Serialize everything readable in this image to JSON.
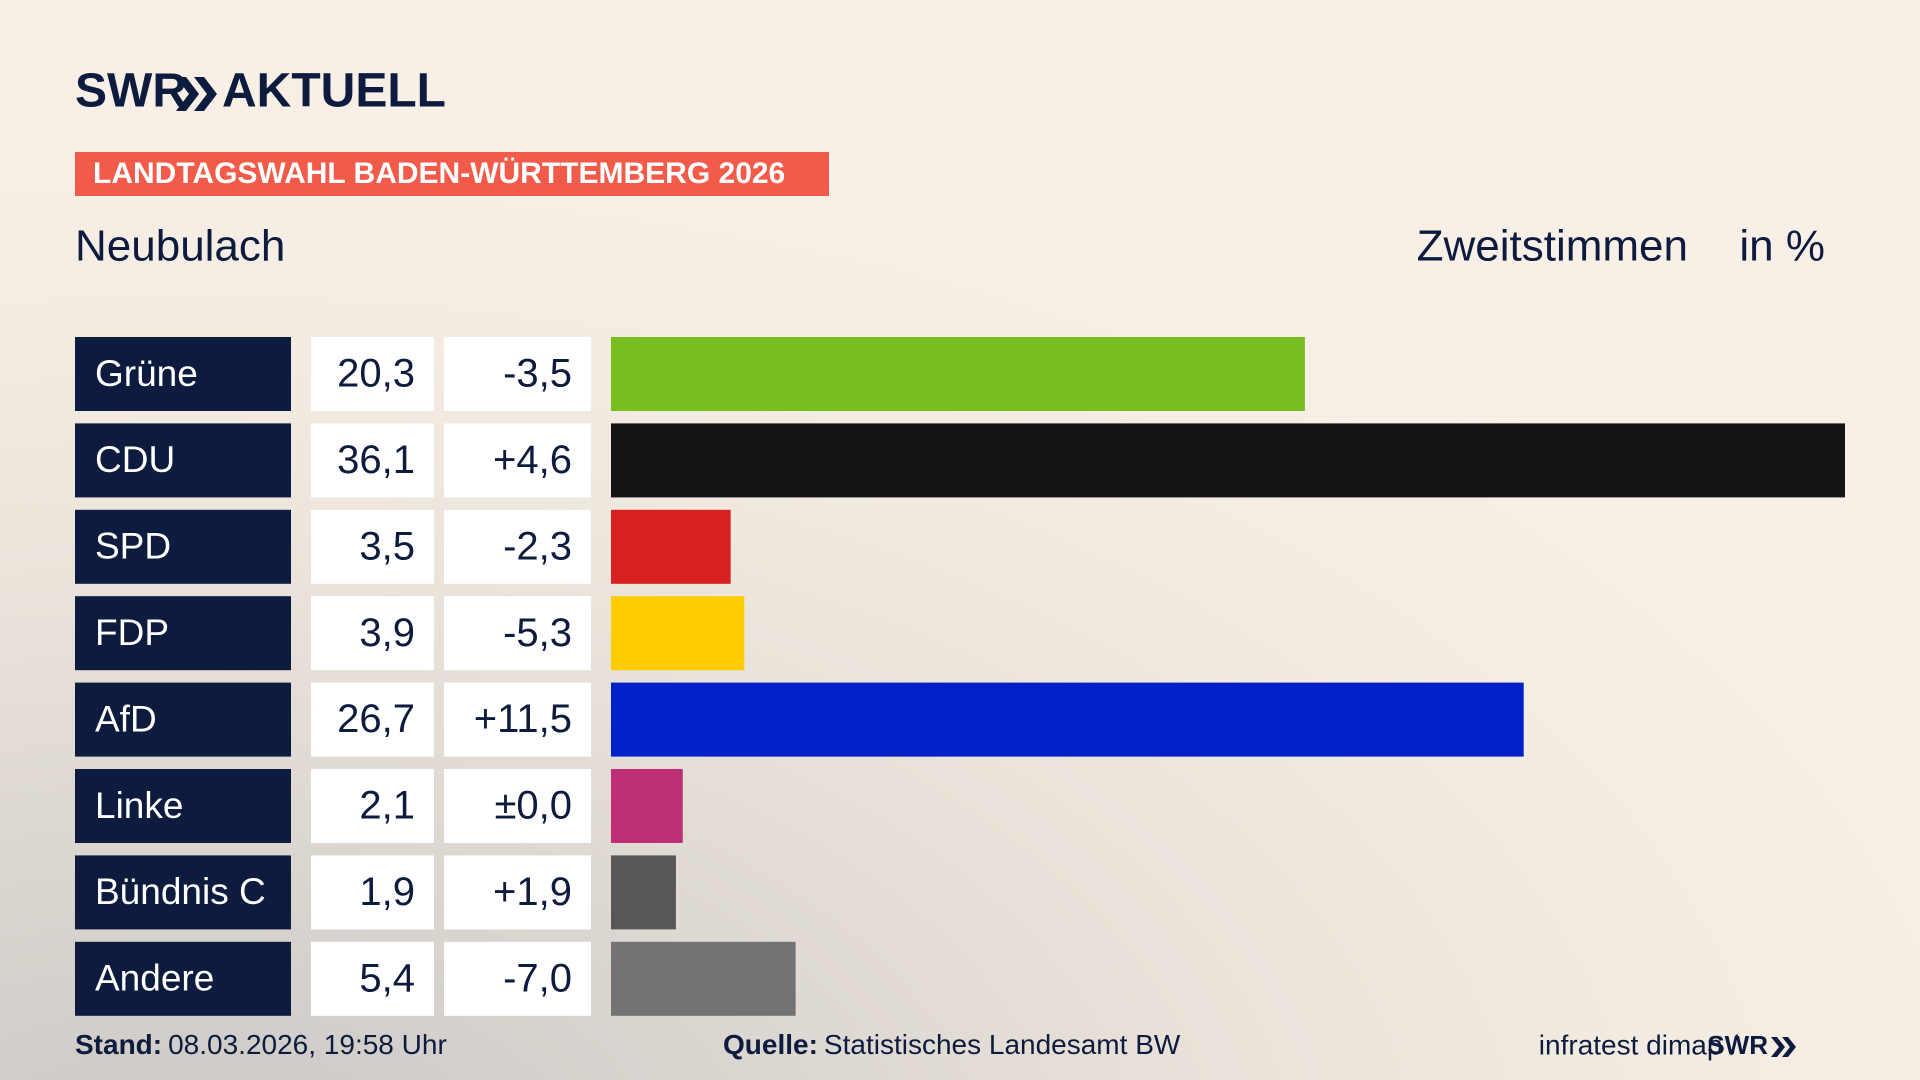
{
  "brand": "SWR",
  "brand_product": "AKTUELL",
  "chart_data": {
    "type": "bar",
    "title": "LANDTAGSWAHL BADEN-WÜRTTEMBERG 2026",
    "subtitle": "Neubulach",
    "measure": "Zweitstimmen",
    "unit": "in %",
    "categories": [
      "Grüne",
      "CDU",
      "SPD",
      "FDP",
      "AfD",
      "Linke",
      "Bündnis C",
      "Andere"
    ],
    "values": [
      20.3,
      36.1,
      3.5,
      3.9,
      26.7,
      2.1,
      1.9,
      5.4
    ],
    "value_labels": [
      "20,3",
      "36,1",
      "3,5",
      "3,9",
      "26,7",
      "2,1",
      "1,9",
      "5,4"
    ],
    "change_labels": [
      "-3,5",
      "+4,6",
      "-2,3",
      "-5,3",
      "+11,5",
      "±0,0",
      "+1,9",
      "-7,0"
    ],
    "colors": [
      "#78be20",
      "#141414",
      "#d7201f",
      "#ffcc00",
      "#0020c8",
      "#be3075",
      "#575757",
      "#737373"
    ],
    "xlim": [
      0,
      36.1
    ]
  },
  "footer": {
    "stand_label": "Stand:",
    "stand": "08.03.2026, 19:58 Uhr",
    "source_label": "Quelle:",
    "source": "Statistisches Landesamt BW",
    "credit": "infratest dimap /",
    "credit_brand": "SWR"
  }
}
